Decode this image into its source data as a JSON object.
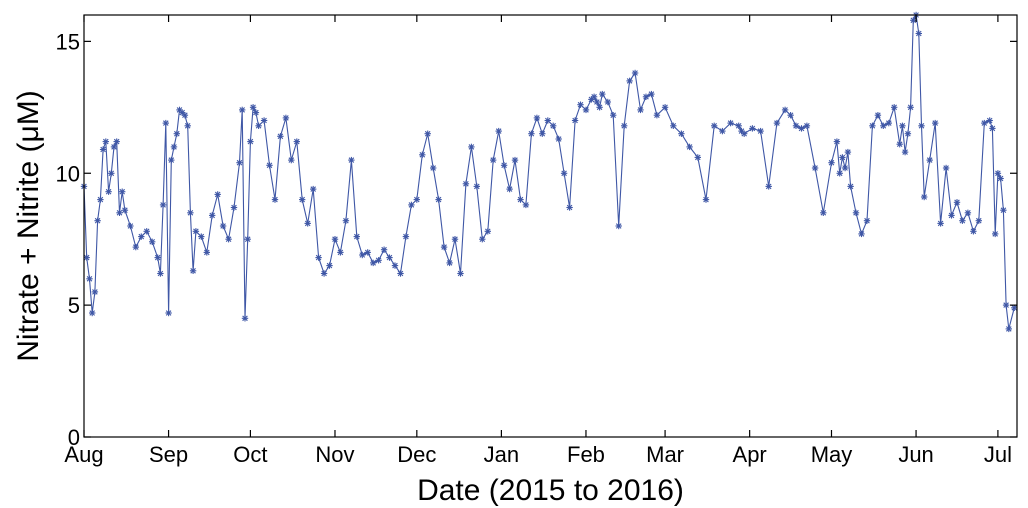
{
  "chart_data": {
    "type": "line",
    "title": "",
    "xlabel": "Date (2015 to 2016)",
    "ylabel": "Nitrate + Nitrite (μM)",
    "ylim": [
      0,
      16
    ],
    "xlim": [
      "2015-08-01",
      "2016-07-08"
    ],
    "grid": false,
    "legend": "none",
    "line_color": "#3f57a6",
    "marker": "asterisk",
    "x_ticks": [
      {
        "date": "2015-08-01",
        "label": "Aug"
      },
      {
        "date": "2015-09-01",
        "label": "Sep"
      },
      {
        "date": "2015-10-01",
        "label": "Oct"
      },
      {
        "date": "2015-11-01",
        "label": "Nov"
      },
      {
        "date": "2015-12-01",
        "label": "Dec"
      },
      {
        "date": "2016-01-01",
        "label": "Jan"
      },
      {
        "date": "2016-02-01",
        "label": "Feb"
      },
      {
        "date": "2016-03-01",
        "label": "Mar"
      },
      {
        "date": "2016-04-01",
        "label": "Apr"
      },
      {
        "date": "2016-05-01",
        "label": "May"
      },
      {
        "date": "2016-06-01",
        "label": "Jun"
      },
      {
        "date": "2016-07-01",
        "label": "Jul"
      }
    ],
    "y_ticks": [
      0,
      5,
      10,
      15
    ],
    "series": [
      {
        "x": [
          "2015-08-01",
          "2015-08-02",
          "2015-08-03",
          "2015-08-04",
          "2015-08-05",
          "2015-08-06",
          "2015-08-07",
          "2015-08-08",
          "2015-08-09",
          "2015-08-10",
          "2015-08-11",
          "2015-08-12",
          "2015-08-13",
          "2015-08-14",
          "2015-08-15",
          "2015-08-16",
          "2015-08-18",
          "2015-08-20",
          "2015-08-22",
          "2015-08-24",
          "2015-08-26",
          "2015-08-28",
          "2015-08-29",
          "2015-08-30",
          "2015-08-31",
          "2015-09-01",
          "2015-09-02",
          "2015-09-03",
          "2015-09-04",
          "2015-09-05",
          "2015-09-06",
          "2015-09-07",
          "2015-09-08",
          "2015-09-09",
          "2015-09-10",
          "2015-09-11",
          "2015-09-13",
          "2015-09-15",
          "2015-09-17",
          "2015-09-19",
          "2015-09-21",
          "2015-09-23",
          "2015-09-25",
          "2015-09-27",
          "2015-09-28",
          "2015-09-29",
          "2015-09-30",
          "2015-10-01",
          "2015-10-02",
          "2015-10-03",
          "2015-10-04",
          "2015-10-06",
          "2015-10-08",
          "2015-10-10",
          "2015-10-12",
          "2015-10-14",
          "2015-10-16",
          "2015-10-18",
          "2015-10-20",
          "2015-10-22",
          "2015-10-24",
          "2015-10-26",
          "2015-10-28",
          "2015-10-30",
          "2015-11-01",
          "2015-11-03",
          "2015-11-05",
          "2015-11-07",
          "2015-11-09",
          "2015-11-11",
          "2015-11-13",
          "2015-11-15",
          "2015-11-17",
          "2015-11-19",
          "2015-11-21",
          "2015-11-23",
          "2015-11-25",
          "2015-11-27",
          "2015-11-29",
          "2015-12-01",
          "2015-12-03",
          "2015-12-05",
          "2015-12-07",
          "2015-12-09",
          "2015-12-11",
          "2015-12-13",
          "2015-12-15",
          "2015-12-17",
          "2015-12-19",
          "2015-12-21",
          "2015-12-23",
          "2015-12-25",
          "2015-12-27",
          "2015-12-29",
          "2015-12-31",
          "2016-01-02",
          "2016-01-04",
          "2016-01-06",
          "2016-01-08",
          "2016-01-10",
          "2016-01-12",
          "2016-01-14",
          "2016-01-16",
          "2016-01-18",
          "2016-01-20",
          "2016-01-22",
          "2016-01-24",
          "2016-01-26",
          "2016-01-28",
          "2016-01-30",
          "2016-02-01",
          "2016-02-03",
          "2016-02-04",
          "2016-02-05",
          "2016-02-06",
          "2016-02-07",
          "2016-02-09",
          "2016-02-11",
          "2016-02-13",
          "2016-02-15",
          "2016-02-17",
          "2016-02-19",
          "2016-02-21",
          "2016-02-23",
          "2016-02-25",
          "2016-02-27",
          "2016-03-01",
          "2016-03-04",
          "2016-03-07",
          "2016-03-10",
          "2016-03-13",
          "2016-03-16",
          "2016-03-19",
          "2016-03-22",
          "2016-03-25",
          "2016-03-28",
          "2016-03-29",
          "2016-03-30",
          "2016-04-02",
          "2016-04-05",
          "2016-04-08",
          "2016-04-11",
          "2016-04-14",
          "2016-04-16",
          "2016-04-18",
          "2016-04-20",
          "2016-04-22",
          "2016-04-25",
          "2016-04-28",
          "2016-05-01",
          "2016-05-03",
          "2016-05-04",
          "2016-05-05",
          "2016-05-06",
          "2016-05-07",
          "2016-05-08",
          "2016-05-10",
          "2016-05-12",
          "2016-05-14",
          "2016-05-16",
          "2016-05-18",
          "2016-05-20",
          "2016-05-22",
          "2016-05-24",
          "2016-05-26",
          "2016-05-27",
          "2016-05-28",
          "2016-05-29",
          "2016-05-30",
          "2016-05-31",
          "2016-06-01",
          "2016-06-02",
          "2016-06-03",
          "2016-06-04",
          "2016-06-06",
          "2016-06-08",
          "2016-06-10",
          "2016-06-12",
          "2016-06-14",
          "2016-06-16",
          "2016-06-18",
          "2016-06-20",
          "2016-06-22",
          "2016-06-24",
          "2016-06-26",
          "2016-06-28",
          "2016-06-29",
          "2016-06-30",
          "2016-07-01",
          "2016-07-02",
          "2016-07-03",
          "2016-07-04",
          "2016-07-05",
          "2016-07-07"
        ],
        "values": [
          9.5,
          6.8,
          6,
          4.7,
          5.5,
          8.2,
          9,
          10.9,
          11.2,
          9.3,
          10,
          11,
          11.2,
          8.5,
          9.3,
          8.6,
          8,
          7.2,
          7.6,
          7.8,
          7.4,
          6.8,
          6.2,
          8.8,
          11.9,
          4.7,
          10.5,
          11,
          11.5,
          12.4,
          12.3,
          12.2,
          11.8,
          8.5,
          6.3,
          7.8,
          7.6,
          7,
          8.4,
          9.2,
          8,
          7.5,
          8.7,
          10.4,
          12.4,
          4.5,
          7.5,
          11.2,
          12.5,
          12.3,
          11.8,
          12,
          10.3,
          9,
          11.4,
          12.1,
          10.5,
          11.2,
          9,
          8.1,
          9.4,
          6.8,
          6.2,
          6.5,
          7.5,
          7,
          8.2,
          10.5,
          7.6,
          6.9,
          7,
          6.6,
          6.7,
          7.1,
          6.8,
          6.5,
          6.2,
          7.6,
          8.8,
          9,
          10.7,
          11.5,
          10.2,
          9,
          7.2,
          6.6,
          7.5,
          6.2,
          9.6,
          11,
          9.5,
          7.5,
          7.8,
          10.5,
          11.6,
          10.3,
          9.4,
          10.5,
          9,
          8.8,
          11.5,
          12.1,
          11.5,
          12,
          11.8,
          11.3,
          10,
          8.7,
          12,
          12.6,
          12.4,
          12.8,
          12.9,
          12.7,
          12.5,
          13,
          12.7,
          12.2,
          8,
          11.8,
          13.5,
          13.8,
          12.4,
          12.9,
          13,
          12.2,
          12.5,
          11.8,
          11.5,
          11,
          10.6,
          9,
          11.8,
          11.6,
          11.9,
          11.8,
          11.6,
          11.5,
          11.7,
          11.6,
          9.5,
          11.9,
          12.4,
          12.2,
          11.8,
          11.7,
          11.8,
          10.2,
          8.5,
          10.4,
          11.2,
          10,
          10.6,
          10.2,
          10.8,
          9.5,
          8.5,
          7.7,
          8.2,
          11.8,
          12.2,
          11.8,
          11.9,
          12.5,
          11.1,
          11.8,
          10.8,
          11.5,
          12.5,
          15.8,
          16,
          15.3,
          11.8,
          9.1,
          10.5,
          11.9,
          8.1,
          10.2,
          8.4,
          8.9,
          8.2,
          8.5,
          7.8,
          8.2,
          11.9,
          12,
          11.7,
          7.7,
          10,
          9.8,
          8.6,
          5,
          4.1,
          4.9
        ]
      }
    ]
  }
}
